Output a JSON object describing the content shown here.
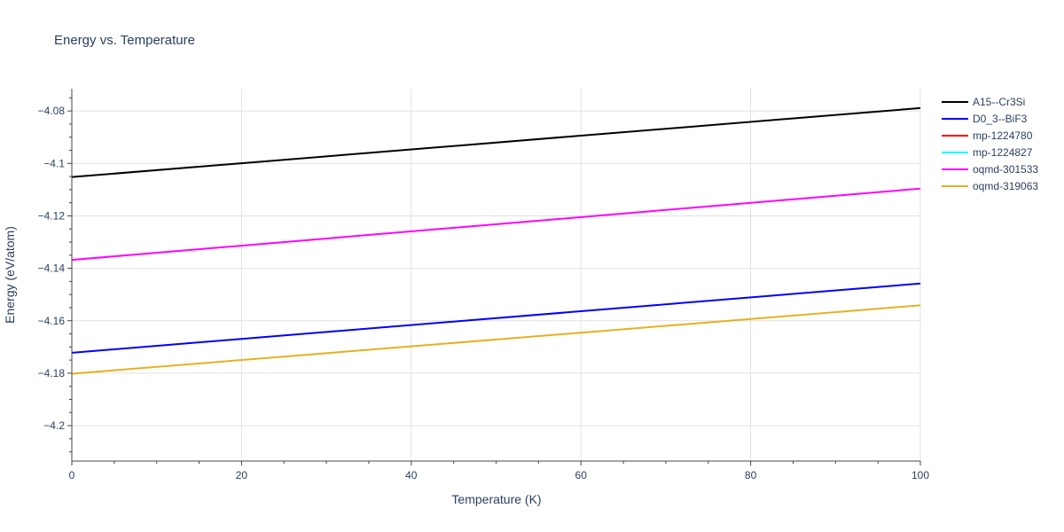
{
  "chart_data": {
    "type": "line",
    "title": "Energy vs. Temperature",
    "xlabel": "Temperature (K)",
    "ylabel": "Energy (eV/atom)",
    "xlim": [
      0,
      100
    ],
    "ylim": [
      -4.2135,
      -4.0715
    ],
    "x_ticks": [
      0,
      20,
      40,
      60,
      80,
      100
    ],
    "x_tick_labels": [
      "0",
      "20",
      "40",
      "60",
      "80",
      "100"
    ],
    "y_ticks": [
      -4.08,
      -4.1,
      -4.12,
      -4.14,
      -4.16,
      -4.18,
      -4.2
    ],
    "y_tick_labels": [
      "−4.08",
      "−4.1",
      "−4.12",
      "−4.14",
      "−4.16",
      "−4.18",
      "−4.2"
    ],
    "grid": true,
    "legend_position": "right",
    "series": [
      {
        "name": "A15--Cr3Si",
        "color": "#000000",
        "x": [
          0,
          100
        ],
        "y": [
          -4.1052,
          -4.0789
        ]
      },
      {
        "name": "D0_3--BiF3",
        "color": "#0000ff",
        "x": [
          0,
          100
        ],
        "y": [
          -4.1722,
          -4.1458
        ]
      },
      {
        "name": "mp-1224780",
        "color": "#ff0000",
        "x": [],
        "y": []
      },
      {
        "name": "mp-1224827",
        "color": "#00ffff",
        "x": [],
        "y": []
      },
      {
        "name": "oqmd-301533",
        "color": "#ff00ff",
        "x": [
          0,
          100
        ],
        "y": [
          -4.1368,
          -4.1096
        ]
      },
      {
        "name": "oqmd-319063",
        "color": "#e6b020",
        "x": [
          0,
          100
        ],
        "y": [
          -4.1802,
          -4.1541
        ]
      }
    ]
  }
}
